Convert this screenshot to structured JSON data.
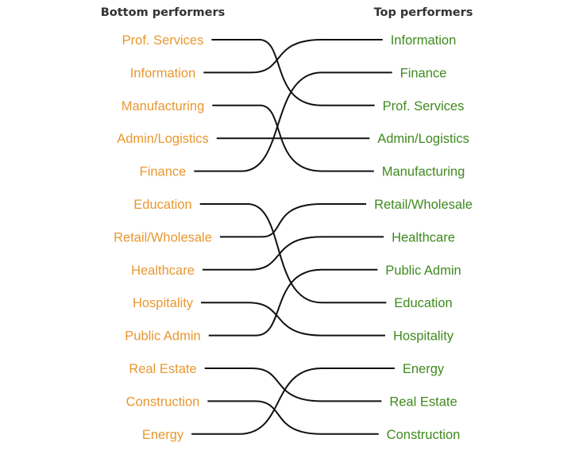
{
  "headers": {
    "left": "Bottom performers",
    "right": "Top performers"
  },
  "colors": {
    "left_label": "#E8982F",
    "right_label": "#3F8A1E",
    "line": "#111111",
    "header": "#333333"
  },
  "groups": [
    {
      "left": [
        "Prof. Services",
        "Information",
        "Manufacturing",
        "Admin/Logistics",
        "Finance"
      ],
      "right": [
        "Information",
        "Finance",
        "Prof. Services",
        "Admin/Logistics",
        "Manufacturing"
      ]
    },
    {
      "left": [
        "Education",
        "Retail/Wholesale",
        "Healthcare",
        "Hospitality",
        "Public Admin"
      ],
      "right": [
        "Retail/Wholesale",
        "Healthcare",
        "Public Admin",
        "Education",
        "Hospitality"
      ]
    },
    {
      "left": [
        "Real Estate",
        "Construction",
        "Energy"
      ],
      "right": [
        "Energy",
        "Real Estate",
        "Construction"
      ]
    }
  ]
}
